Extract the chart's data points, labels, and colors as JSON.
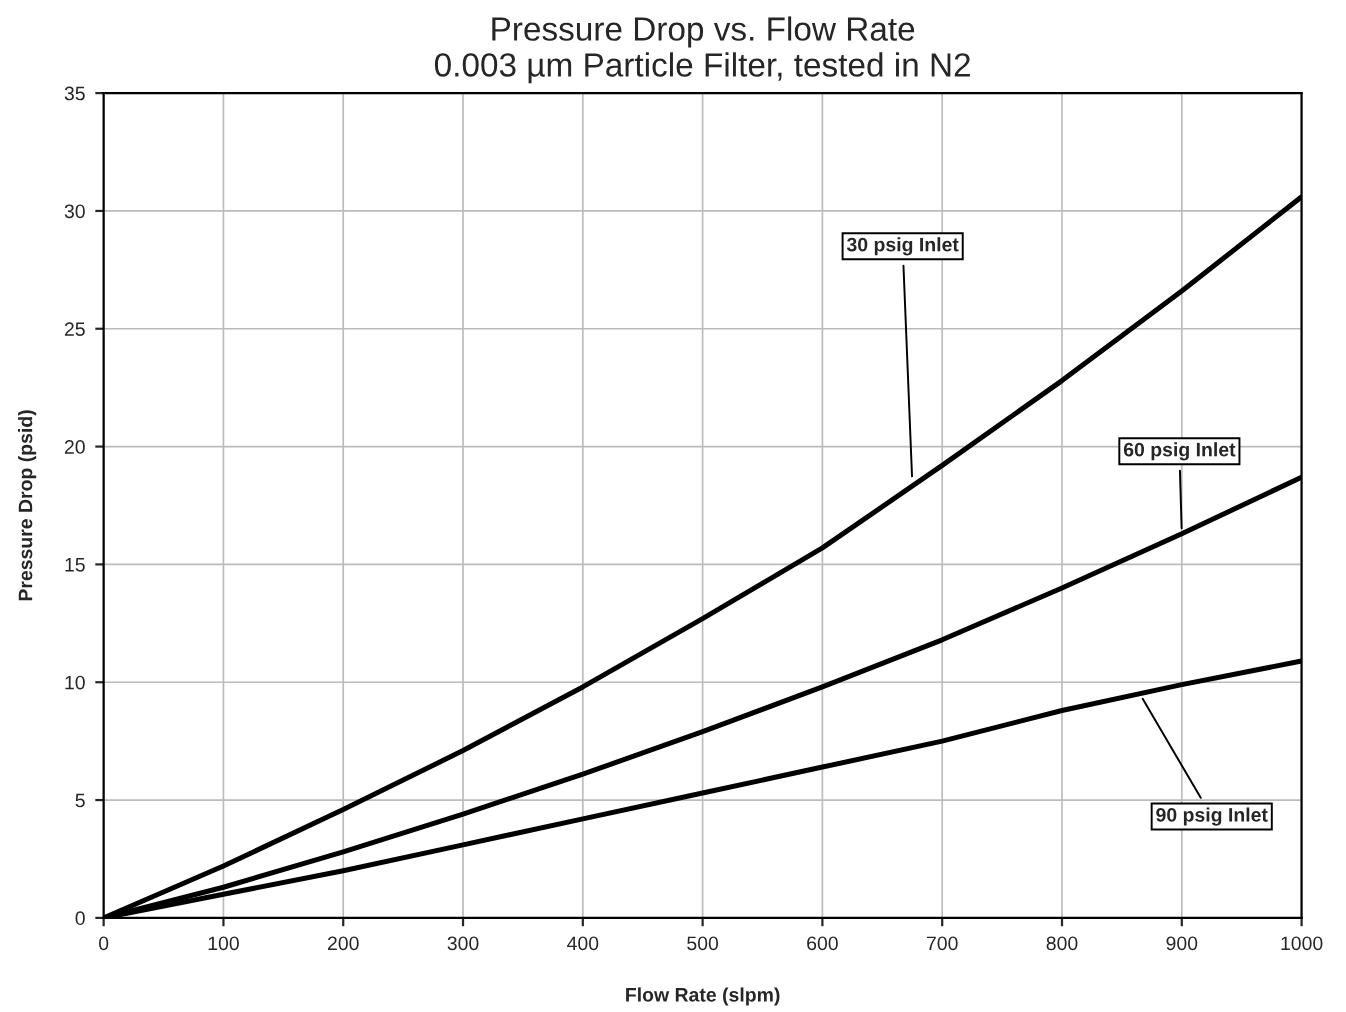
{
  "chart_data": {
    "type": "line",
    "title": "Pressure Drop vs. Flow Rate\n0.003 µm Particle Filter, tested in N2",
    "xlabel": "Flow Rate (slpm)",
    "ylabel": "Pressure Drop (psid)",
    "x": [
      0,
      100,
      200,
      300,
      400,
      500,
      600,
      700,
      800,
      900,
      1000
    ],
    "series": [
      {
        "color": "#000000",
        "values": [
          0,
          2.2,
          4.6,
          7.1,
          9.8,
          12.7,
          15.7,
          19.2,
          22.8,
          26.6,
          30.6
        ]
      },
      {
        "color": "#000000",
        "values": [
          0,
          1.3,
          2.8,
          4.4,
          6.1,
          7.9,
          9.8,
          11.8,
          14.0,
          16.3,
          18.7
        ]
      },
      {
        "color": "#000000",
        "values": [
          0,
          1.0,
          2.0,
          3.1,
          4.2,
          5.3,
          6.4,
          7.5,
          8.8,
          9.9,
          10.9
        ]
      }
    ],
    "xlim": [
      0,
      1000
    ],
    "xticks": [
      0,
      100,
      200,
      300,
      400,
      500,
      600,
      700,
      800,
      900,
      1000
    ],
    "ylim": [
      0,
      35
    ],
    "yticks": [
      0,
      5,
      10,
      15,
      20,
      25,
      30,
      35
    ],
    "grid": true,
    "legend": false,
    "marker": "none",
    "line_style": "solid",
    "annotations": [
      {
        "text": "30 psig Inlet",
        "x": 675,
        "y": 18.5
      },
      {
        "text": "60 psig Inlet",
        "x": 900,
        "y": 16.3
      },
      {
        "text": "90 psig Inlet",
        "x": 865,
        "y": 9.5
      }
    ]
  }
}
